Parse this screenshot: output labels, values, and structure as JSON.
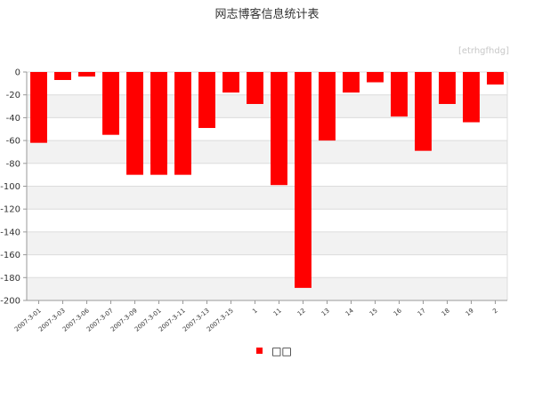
{
  "page": {
    "title": "网志博客信息统计表",
    "watermark": "[etrhgfhdg]"
  },
  "legend": {
    "label": "□□",
    "color": "#ff0000"
  },
  "colors": {
    "bar": "#ff0000",
    "band": "#f2f2f2",
    "gridline": "#dcdcdc",
    "axis": "#999999"
  },
  "chart_data": {
    "type": "bar",
    "title": "网志博客信息统计表",
    "xlabel": "",
    "ylabel": "",
    "ylim": [
      -200,
      0
    ],
    "yticks": [
      0,
      -20,
      -40,
      -60,
      -80,
      -100,
      -120,
      -140,
      -160,
      -180,
      -200
    ],
    "grid": true,
    "legend_position": "bottom",
    "categories": [
      "2007-3-01",
      "2007-3-03",
      "2007-3-06",
      "2007-3-07",
      "2007-3-09",
      "2007-3-01",
      "2007-3-11",
      "2007-3-13",
      "2007-3-15",
      "1",
      "11",
      "12",
      "13",
      "14",
      "15",
      "16",
      "17",
      "18",
      "19",
      "2"
    ],
    "series": [
      {
        "name": "□□",
        "values": [
          -62,
          -7,
          -4,
          -55,
          -90,
          -90,
          -90,
          -49,
          -18,
          -28,
          -99,
          -189,
          -60,
          -18,
          -9,
          -39,
          -69,
          -28,
          -44,
          -11
        ]
      }
    ]
  }
}
